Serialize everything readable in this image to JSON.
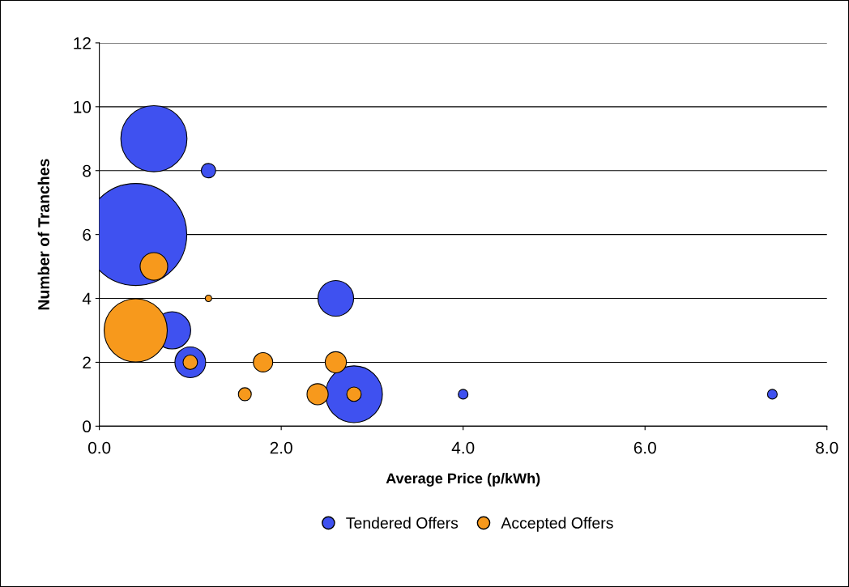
{
  "chart_data": {
    "type": "bubble",
    "xlabel": "Average Price (p/kWh)",
    "ylabel": "Number of Tranches",
    "xlim": [
      0,
      8
    ],
    "xticks": [
      {
        "value": 0,
        "label": "0.0"
      },
      {
        "value": 2,
        "label": "2.0"
      },
      {
        "value": 4,
        "label": "4.0"
      },
      {
        "value": 6,
        "label": "6.0"
      },
      {
        "value": 8,
        "label": "8.0"
      }
    ],
    "ylim": [
      0,
      12
    ],
    "yticks": [
      0,
      2,
      4,
      6,
      8,
      10,
      12
    ],
    "grid": "y",
    "legend": "bottom",
    "marker": "circle",
    "series": [
      {
        "name": "Tendered Offers",
        "color": "#3f51f0",
        "x": [
          0.6,
          1.2,
          0.4,
          0.8,
          1.0,
          2.6,
          2.8,
          4.0,
          7.4
        ],
        "values": [
          9,
          8,
          6,
          3,
          2,
          4,
          1,
          1,
          1
        ],
        "sizes": [
          0.42,
          0.02,
          1,
          0.133,
          0.091,
          0.122,
          0.31,
          0.009,
          0.009
        ]
      },
      {
        "name": "Accepted Offers",
        "color": "#f7991c",
        "x": [
          0.6,
          1.2,
          0.4,
          1.0,
          1.8,
          2.6,
          1.6,
          2.4,
          2.8
        ],
        "values": [
          5,
          4,
          3,
          2,
          2,
          2,
          1,
          1,
          1
        ],
        "sizes": [
          0.073,
          0.004,
          0.383,
          0.02,
          0.036,
          0.043,
          0.016,
          0.043,
          0.02
        ]
      }
    ]
  }
}
